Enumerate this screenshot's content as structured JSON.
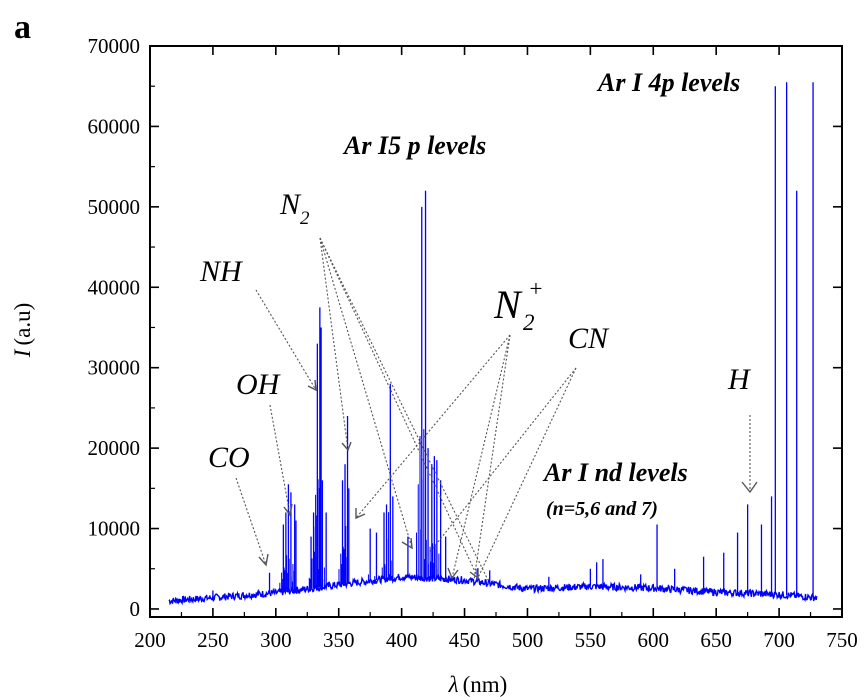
{
  "panel_label": "a",
  "chart_data": {
    "type": "line",
    "title": "",
    "xlabel": "λ (nm)",
    "xlabel_symbol": "λ",
    "xlabel_unit": "(nm)",
    "ylabel": "I (a.u)",
    "ylabel_symbol": "I",
    "ylabel_unit": "(a.u)",
    "xlim": [
      200,
      750
    ],
    "ylim": [
      -1000,
      70000
    ],
    "x_ticks": [
      "200",
      "250",
      "300",
      "350",
      "400",
      "450",
      "500",
      "550",
      "600",
      "650",
      "700",
      "750"
    ],
    "y_ticks": [
      "0",
      "10000",
      "20000",
      "30000",
      "40000",
      "50000",
      "60000",
      "70000"
    ],
    "series": [
      {
        "color": "#0000ff",
        "baseline": [
          [
            215,
            1000
          ],
          [
            250,
            1400
          ],
          [
            300,
            2000
          ],
          [
            350,
            3000
          ],
          [
            400,
            4000
          ],
          [
            450,
            3600
          ],
          [
            500,
            2500
          ],
          [
            550,
            2800
          ],
          [
            600,
            2600
          ],
          [
            650,
            2100
          ],
          [
            700,
            1800
          ],
          [
            730,
            1400
          ]
        ],
        "x": [
          250,
          295,
          306,
          308,
          310,
          312,
          315,
          316,
          328,
          330,
          333,
          335,
          336,
          337,
          340,
          353,
          355,
          357,
          358,
          375,
          380,
          386,
          388,
          391,
          393,
          405,
          416,
          419,
          421,
          424,
          426,
          428,
          431,
          435,
          460,
          470,
          517,
          550,
          555,
          560,
          590,
          603,
          617,
          640,
          656,
          667,
          675,
          686,
          694,
          697,
          706,
          714,
          727
        ],
        "y": [
          2300,
          4500,
          10500,
          12000,
          15500,
          14500,
          13000,
          11000,
          9000,
          12000,
          33000,
          37500,
          35000,
          16000,
          12000,
          16000,
          18000,
          24000,
          15000,
          10000,
          9500,
          12000,
          13000,
          28000,
          14000,
          9000,
          50000,
          52000,
          20000,
          18000,
          19000,
          18500,
          16000,
          9000,
          5000,
          4800,
          4000,
          5000,
          5800,
          6200,
          4300,
          10500,
          5000,
          6500,
          7000,
          9500,
          13000,
          10500,
          14000,
          65000,
          65500,
          52000,
          65500
        ]
      }
    ],
    "annotations": [
      {
        "text": "CO"
      },
      {
        "text": "OH"
      },
      {
        "text": "NH"
      },
      {
        "text": "N",
        "sub": "2"
      },
      {
        "text": "N",
        "sub": "2",
        "sup": "+"
      },
      {
        "text": "CN"
      },
      {
        "text": "H"
      },
      {
        "text": "Ar I5 p levels"
      },
      {
        "text": "Ar I 4p levels"
      },
      {
        "text": "Ar I nd levels"
      },
      {
        "text": "(n=5,6 and 7)"
      }
    ]
  }
}
